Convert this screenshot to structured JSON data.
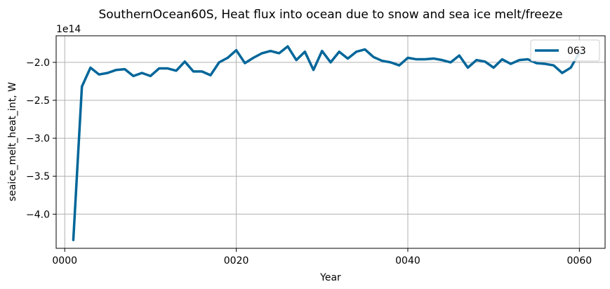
{
  "chart_data": {
    "type": "line",
    "title": "SouthernOcean60S, Heat flux into ocean due to snow and sea ice melt/freeze",
    "xlabel": "Year",
    "ylabel": "seaice_melt_heat_int, W",
    "y_offset_label": "1e14",
    "y_scale_factor": 100000000000000.0,
    "xlim": [
      -1,
      63
    ],
    "ylim": [
      -4.45,
      -1.65
    ],
    "x_ticks": [
      0,
      20,
      40,
      60
    ],
    "x_tick_labels": [
      "0000",
      "0020",
      "0040",
      "0060"
    ],
    "y_ticks": [
      -4.0,
      -3.5,
      -3.0,
      -2.5,
      -2.0
    ],
    "y_tick_labels": [
      "−4.0",
      "−3.5",
      "−3.0",
      "−2.5",
      "−2.0"
    ],
    "grid": true,
    "legend_position": "top-right",
    "series": [
      {
        "name": "063",
        "color": "#006699",
        "x": [
          1,
          2,
          3,
          4,
          5,
          6,
          7,
          8,
          9,
          10,
          11,
          12,
          13,
          14,
          15,
          16,
          17,
          18,
          19,
          20,
          21,
          22,
          23,
          24,
          25,
          26,
          27,
          28,
          29,
          30,
          31,
          32,
          33,
          34,
          35,
          36,
          37,
          38,
          39,
          40,
          41,
          42,
          43,
          44,
          45,
          46,
          47,
          48,
          49,
          50,
          51,
          52,
          53,
          54,
          55,
          56,
          57,
          58,
          59,
          60
        ],
        "values": [
          -4.34,
          -2.32,
          -2.07,
          -2.16,
          -2.14,
          -2.1,
          -2.09,
          -2.18,
          -2.14,
          -2.18,
          -2.08,
          -2.08,
          -2.11,
          -1.99,
          -2.12,
          -2.12,
          -2.17,
          -2.0,
          -1.94,
          -1.84,
          -2.01,
          -1.94,
          -1.88,
          -1.85,
          -1.88,
          -1.79,
          -1.97,
          -1.86,
          -2.1,
          -1.85,
          -2.0,
          -1.86,
          -1.95,
          -1.86,
          -1.83,
          -1.93,
          -1.98,
          -2.0,
          -2.04,
          -1.94,
          -1.96,
          -1.96,
          -1.95,
          -1.97,
          -2.0,
          -1.91,
          -2.07,
          -1.97,
          -1.99,
          -2.07,
          -1.96,
          -2.02,
          -1.97,
          -1.96,
          -2.01,
          -2.02,
          -2.04,
          -2.14,
          -2.07,
          -1.87
        ]
      }
    ]
  }
}
